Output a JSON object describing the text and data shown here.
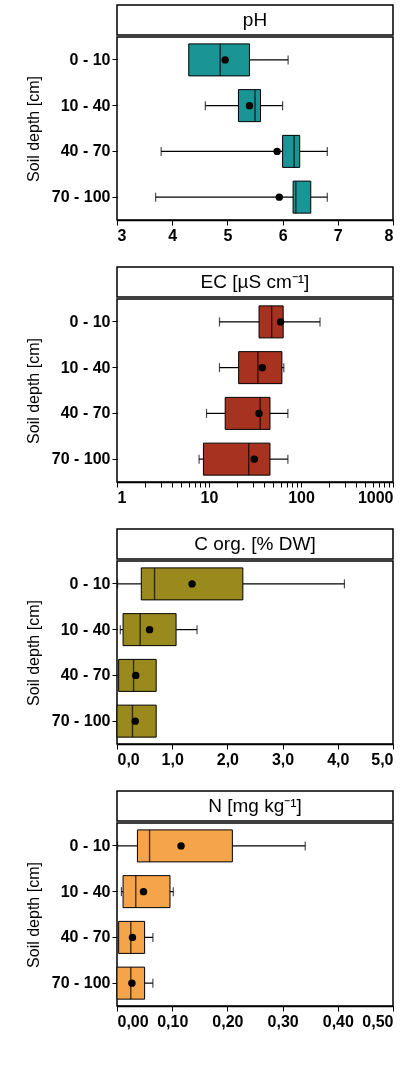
{
  "chart_data": [
    {
      "type": "box",
      "title": "pH",
      "ylabel": "Soil depth [cm]",
      "orientation": "horizontal",
      "categories": [
        "0 - 10",
        "10 - 40",
        "40 - 70",
        "70 - 100"
      ],
      "xlim": [
        3,
        8
      ],
      "xticks": [
        3,
        4,
        5,
        6,
        7,
        8
      ],
      "grid": false,
      "legend": false,
      "series": [
        {
          "color": "#1a9494",
          "boxes": [
            {
              "low": 4.3,
              "q1": 4.3,
              "median": 4.87,
              "q3": 5.4,
              "high": 6.1,
              "mean": 4.96
            },
            {
              "low": 4.6,
              "q1": 5.2,
              "median": 5.5,
              "q3": 5.6,
              "high": 6.0,
              "mean": 5.4
            },
            {
              "low": 3.8,
              "q1": 6.0,
              "median": 6.21,
              "q3": 6.31,
              "high": 6.81,
              "mean": 5.9
            },
            {
              "low": 3.7,
              "q1": 6.19,
              "median": 6.24,
              "q3": 6.51,
              "high": 6.81,
              "mean": 5.94
            }
          ]
        }
      ]
    },
    {
      "type": "box",
      "title": "EC [µS cm⁻¹]",
      "ylabel": "Soil depth [cm]",
      "orientation": "horizontal",
      "log": "x",
      "categories": [
        "0 - 10",
        "10 - 40",
        "40 - 70",
        "70 - 100"
      ],
      "xlim": [
        1,
        1000
      ],
      "xticks": [
        1,
        {
          "value": 2,
          "label": null
        },
        {
          "value": 3,
          "label": null
        },
        {
          "value": 4,
          "label": null
        },
        {
          "value": 5,
          "label": null
        },
        {
          "value": 6,
          "label": null
        },
        {
          "value": 7,
          "label": null
        },
        {
          "value": 8,
          "label": null
        },
        {
          "value": 9,
          "label": null
        },
        10,
        {
          "value": 20,
          "label": null
        },
        {
          "value": 30,
          "label": null
        },
        {
          "value": 40,
          "label": null
        },
        {
          "value": 50,
          "label": null
        },
        {
          "value": 60,
          "label": null
        },
        {
          "value": 70,
          "label": null
        },
        {
          "value": 80,
          "label": null
        },
        {
          "value": 90,
          "label": null
        },
        100,
        {
          "value": 200,
          "label": null
        },
        {
          "value": 300,
          "label": null
        },
        {
          "value": 400,
          "label": null
        },
        {
          "value": 500,
          "label": null
        },
        {
          "value": 600,
          "label": null
        },
        {
          "value": 700,
          "label": null
        },
        {
          "value": 800,
          "label": null
        },
        {
          "value": 900,
          "label": null
        },
        1000
      ],
      "grid": false,
      "legend": false,
      "series": [
        {
          "color": "#a83220",
          "boxes": [
            {
              "low": 13,
              "q1": 35,
              "median": 48,
              "q3": 64,
              "high": 161,
              "mean": 60
            },
            {
              "low": 13,
              "q1": 21,
              "median": 34,
              "q3": 62,
              "high": 65,
              "mean": 38
            },
            {
              "low": 9.4,
              "q1": 15,
              "median": 36,
              "q3": 46,
              "high": 72,
              "mean": 35
            },
            {
              "low": 7.8,
              "q1": 8.7,
              "median": 27,
              "q3": 46,
              "high": 72,
              "mean": 31
            }
          ]
        }
      ]
    },
    {
      "type": "box",
      "title": "C org. [% DW]",
      "ylabel": "Soil depth [cm]",
      "orientation": "horizontal",
      "categories": [
        "0 - 10",
        "10 - 40",
        "40 - 70",
        "70 - 100"
      ],
      "xlim": [
        0,
        5
      ],
      "xticks": [
        {
          "value": 0,
          "label": "0,0"
        },
        {
          "value": 1,
          "label": "1,0"
        },
        {
          "value": 2,
          "label": "2,0"
        },
        {
          "value": 3,
          "label": "3,0"
        },
        {
          "value": 4,
          "label": "4,0"
        },
        {
          "value": 5,
          "label": "5,0"
        }
      ],
      "grid": false,
      "legend": false,
      "series": [
        {
          "color": "#9a8a1e",
          "boxes": [
            {
              "low": 0.01,
              "q1": 0.44,
              "median": 0.68,
              "q3": 2.28,
              "high": 4.12,
              "mean": 1.36
            },
            {
              "low": 0.06,
              "q1": 0.11,
              "median": 0.42,
              "q3": 1.07,
              "high": 1.45,
              "mean": 0.59
            },
            {
              "low": 0.03,
              "q1": 0.03,
              "median": 0.3,
              "q3": 0.71,
              "high": 0.71,
              "mean": 0.34
            },
            {
              "low": 0.0,
              "q1": 0.0,
              "median": 0.28,
              "q3": 0.71,
              "high": 0.71,
              "mean": 0.33
            }
          ]
        }
      ]
    },
    {
      "type": "box",
      "title": "N [mg kg⁻¹]",
      "ylabel": "Soil depth [cm]",
      "orientation": "horizontal",
      "categories": [
        "0 - 10",
        "10 - 40",
        "40 - 70",
        "70 - 100"
      ],
      "xlim": [
        0,
        0.5
      ],
      "xticks": [
        {
          "value": 0,
          "label": "0,00"
        },
        {
          "value": 0.1,
          "label": "0,10"
        },
        {
          "value": 0.2,
          "label": "0,20"
        },
        {
          "value": 0.3,
          "label": "0,30"
        },
        {
          "value": 0.4,
          "label": "0,40"
        },
        {
          "value": 0.5,
          "label": "0,50"
        }
      ],
      "grid": false,
      "legend": false,
      "series": [
        {
          "color": "#f5a44a",
          "boxes": [
            {
              "low": 0.001,
              "q1": 0.037,
              "median": 0.059,
              "q3": 0.209,
              "high": 0.341,
              "mean": 0.116
            },
            {
              "low": 0.008,
              "q1": 0.011,
              "median": 0.034,
              "q3": 0.096,
              "high": 0.102,
              "mean": 0.048
            },
            {
              "low": 0.003,
              "q1": 0.003,
              "median": 0.025,
              "q3": 0.05,
              "high": 0.065,
              "mean": 0.028
            },
            {
              "low": 0.0,
              "q1": 0.0,
              "median": 0.025,
              "q3": 0.05,
              "high": 0.065,
              "mean": 0.027
            }
          ]
        }
      ]
    }
  ]
}
